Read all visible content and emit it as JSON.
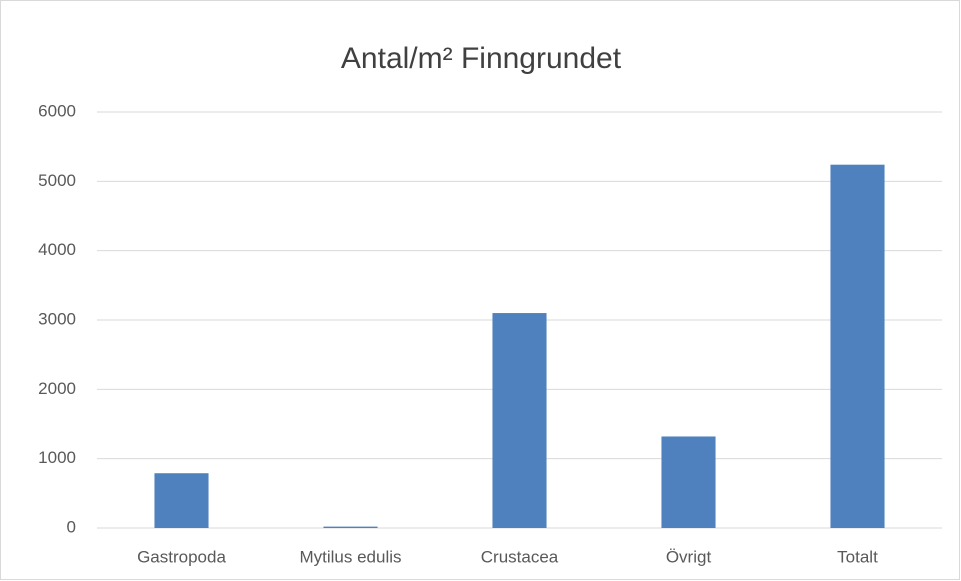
{
  "chart_data": {
    "type": "bar",
    "title": "Antal/m² Finngrundet",
    "categories": [
      "Gastropoda",
      "Mytilus edulis",
      "Crustacea",
      "Övrigt",
      "Totalt"
    ],
    "values": [
      790,
      20,
      3100,
      1320,
      5240
    ],
    "color": "#4e81bd",
    "ylim": [
      0,
      6000
    ],
    "yticks": [
      0,
      1000,
      2000,
      3000,
      4000,
      5000,
      6000
    ],
    "grid": true
  }
}
